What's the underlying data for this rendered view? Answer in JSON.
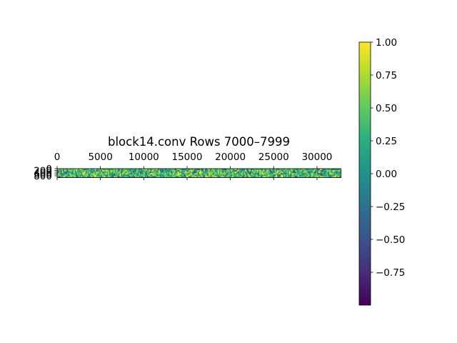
{
  "chart_data": [
    {
      "type": "heatmap",
      "title": "block14.conv Rows 7000–7999",
      "xlabel": "",
      "ylabel": "",
      "x_range": [
        0,
        32768
      ],
      "y_range": [
        0,
        1000
      ],
      "x_ticks": [
        0,
        5000,
        10000,
        15000,
        20000,
        25000,
        30000
      ],
      "x_tick_labels": [
        "0",
        "5000",
        "10000",
        "15000",
        "20000",
        "25000",
        "30000"
      ],
      "x_axis_position": "top",
      "y_ticks": [
        0,
        200,
        400,
        600,
        800
      ],
      "y_tick_labels": [
        "0",
        "200",
        "400",
        "600",
        "800"
      ],
      "colormap": "viridis",
      "value_range": [
        -1.0,
        1.0
      ],
      "grid": false
    },
    {
      "type": "colorbar",
      "colormap": "viridis",
      "range": [
        -1.0,
        1.0
      ],
      "ticks": [
        -0.75,
        -0.5,
        -0.25,
        0.0,
        0.25,
        0.5,
        0.75,
        1.0
      ],
      "tick_labels": [
        "−0.75",
        "−0.50",
        "−0.25",
        "0.00",
        "0.25",
        "0.50",
        "0.75",
        "1.00"
      ],
      "placement": "right"
    }
  ]
}
